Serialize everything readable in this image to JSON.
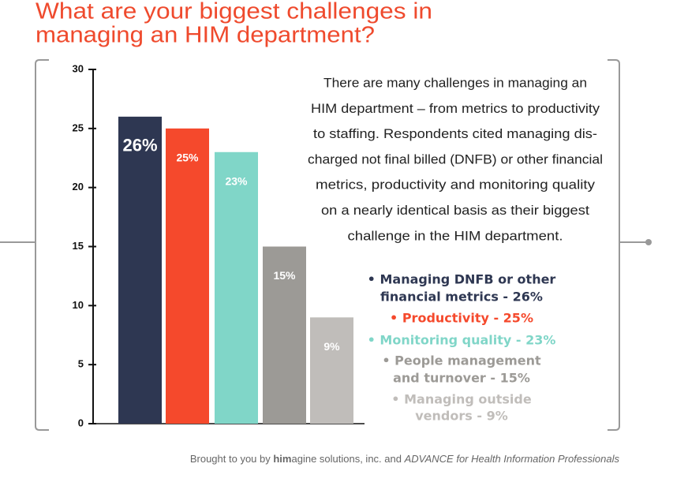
{
  "chart_data": {
    "type": "bar",
    "title": [
      "What are your biggest challenges in",
      "managing an HIM department?"
    ],
    "categories": [
      "Managing DNFB or other financial metrics",
      "Productivity",
      "Monitoring quality",
      "People management and turnover",
      "Managing outside vendors"
    ],
    "values": [
      26,
      25,
      23,
      15,
      9
    ],
    "value_labels": [
      "26%",
      "25%",
      "23%",
      "15%",
      "9%"
    ],
    "colors": [
      "#2e3752",
      "#f5492c",
      "#80d6c8",
      "#9c9a96",
      "#c0bdba"
    ],
    "ylim": [
      0,
      30
    ],
    "yticks": [
      0,
      5,
      10,
      15,
      20,
      25,
      30
    ],
    "description": [
      "There are many challenges in managing an",
      "HIM department – from metrics to productivity",
      "to staffing. Respondents cited managing dis-",
      "charged not final billed (DNFB) or other financial",
      "metrics, productivity and monitoring quality",
      "on a nearly identical basis as their biggest",
      "challenge in the HIM department."
    ],
    "legend": [
      {
        "lines": [
          "• Managing DNFB or other",
          "financial metrics - 26%"
        ]
      },
      {
        "lines": [
          "• Productivity - 25%"
        ]
      },
      {
        "lines": [
          "• Monitoring quality - 23%"
        ]
      },
      {
        "lines": [
          "• People management",
          "and turnover - 15%"
        ]
      },
      {
        "lines": [
          "• Managing outside",
          "vendors - 9%"
        ]
      }
    ],
    "footer": {
      "prefix": "Brought to you by ",
      "brand_bold": "him",
      "brand_rest": "agine solutions, inc. and ",
      "publication": "ADVANCE for Health Information Professionals"
    }
  }
}
